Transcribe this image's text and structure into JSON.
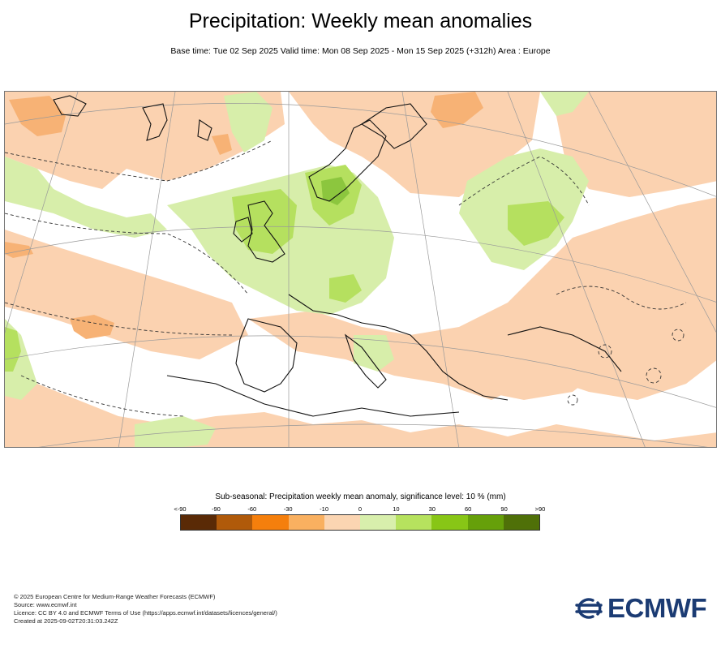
{
  "header": {
    "title": "Precipitation: Weekly mean anomalies",
    "subtitle": "Base time: Tue 02 Sep 2025 Valid time: Mon 08 Sep 2025 - Mon 15 Sep 2025 (+312h) Area : Europe"
  },
  "map": {
    "area": "Europe",
    "colors": {
      "ocean_neutral": "#ffffff",
      "dry_light": "#fbd2b0",
      "dry_medium": "#f7b275",
      "wet_light": "#d7eeaa",
      "wet_medium": "#b5e05f",
      "wet_strong": "#8cc63e",
      "coast": "#111111",
      "grid": "#999999"
    }
  },
  "legend": {
    "title": "Sub-seasonal: Precipitation weekly mean anomaly, significance level: 10 % (mm)",
    "ticks": [
      "<-90",
      "-90",
      "-60",
      "-30",
      "-10",
      "0",
      "10",
      "30",
      "60",
      "90",
      ">90"
    ],
    "colors": [
      "#5a2a06",
      "#b05a0a",
      "#f57f0c",
      "#f9b060",
      "#fbd5b2",
      "#d8efac",
      "#b6e25e",
      "#88c616",
      "#66a00a",
      "#4f7008"
    ]
  },
  "footer": {
    "line1": "© 2025 European Centre for Medium-Range Weather Forecasts (ECMWF)",
    "line2": "Source: www.ecmwf.int",
    "line3": "Licence: CC BY 4.0 and ECMWF Terms of Use (https://apps.ecmwf.int/datasets/licences/general/)",
    "line4": "Created at 2025-09-02T20:31:03.242Z"
  },
  "logo": {
    "text": "ECMWF",
    "icon": "ecmwf-logo-icon",
    "color": "#1b3b73"
  }
}
